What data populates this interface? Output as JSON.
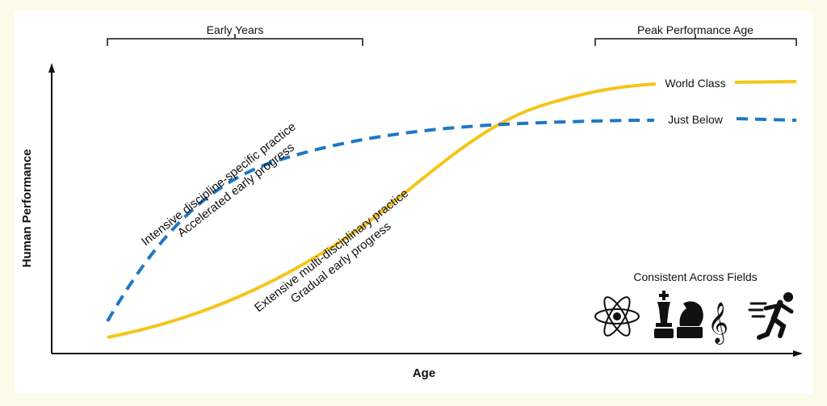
{
  "labels": {
    "early_years": "Early Years",
    "peak_age": "Peak Performance Age",
    "y_axis": "Human Performance",
    "x_axis": "Age",
    "world_class": "World Class",
    "just_below": "Just Below",
    "blue_line1": "Intensive discipline-specific practice",
    "blue_line2": "Accelerated early progress",
    "yellow_line1": "Extensive multi-disciplinary practice",
    "yellow_line2": "Gradual early progress",
    "fields_title": "Consistent Across Fields"
  },
  "colors": {
    "world_class": "#f5c518",
    "just_below": "#1f77c4",
    "axis": "#111111",
    "background": "#fbfbe9"
  },
  "icons": [
    "atom-icon",
    "chess-king-icon",
    "chess-knight-icon",
    "treble-clef-icon",
    "runner-icon"
  ]
}
